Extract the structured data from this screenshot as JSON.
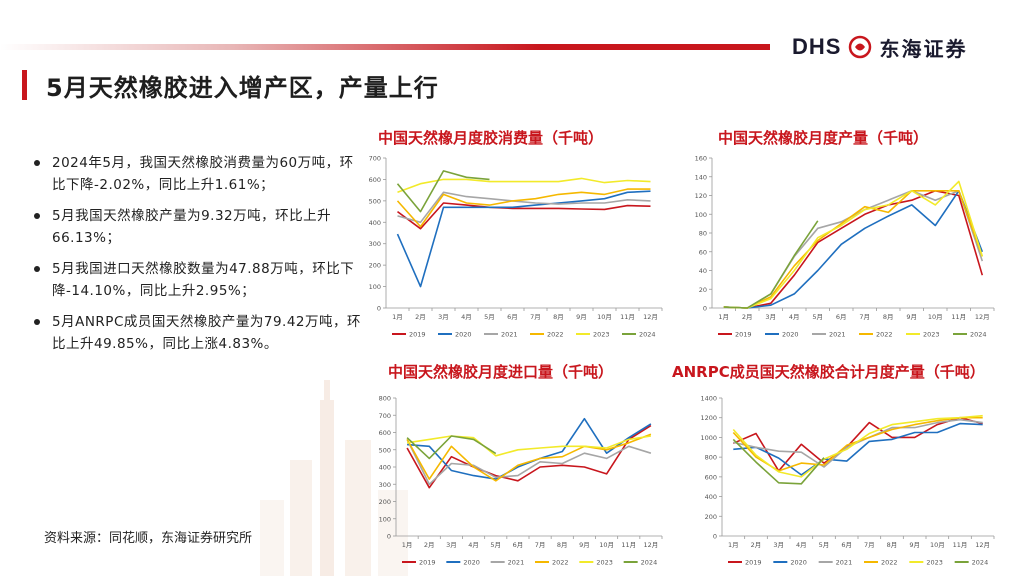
{
  "header": {
    "logo_text": "DHS",
    "logo_cn": "东海证券",
    "page_title": "5月天然橡胶进入增产区，产量上行"
  },
  "bullets": [
    "2024年5月，我国天然橡胶消费量为60万吨，环比下降-2.02%，同比上升1.61%；",
    "5月我国天然橡胶产量为9.32万吨，环比上升66.13%；",
    "5月我国进口天然橡胶数量为47.88万吨，环比下降-14.10%，同比上升2.95%；",
    "5月ANRPC成员国天然橡胶产量为79.42万吨，环比上升49.85%，同比上涨4.83%。"
  ],
  "source": "资料来源：同花顺，东海证券研究所",
  "colors": {
    "2019": "#c8161d",
    "2020": "#1f6fbf",
    "2021": "#a6a6a6",
    "2022": "#f5b800",
    "2023": "#f2ea2a",
    "2024": "#7aa33a"
  },
  "chart_data": [
    {
      "id": "consumption",
      "type": "line",
      "title": "中国天然橡月度胶消费量（千吨）",
      "categories": [
        "1月",
        "2月",
        "3月",
        "4月",
        "5月",
        "6月",
        "7月",
        "8月",
        "9月",
        "10月",
        "11月",
        "12月"
      ],
      "ylim": [
        0,
        700
      ],
      "yticks": [
        0,
        100,
        200,
        300,
        400,
        500,
        600,
        700
      ],
      "series": [
        {
          "name": "2019",
          "values": [
            450,
            370,
            490,
            480,
            470,
            465,
            465,
            465,
            462,
            460,
            478,
            475
          ]
        },
        {
          "name": "2020",
          "values": [
            345,
            100,
            470,
            470,
            470,
            470,
            480,
            490,
            500,
            510,
            540,
            545
          ]
        },
        {
          "name": "2021",
          "values": [
            430,
            400,
            540,
            520,
            510,
            500,
            490,
            485,
            490,
            490,
            505,
            500
          ]
        },
        {
          "name": "2022",
          "values": [
            500,
            380,
            530,
            490,
            480,
            500,
            510,
            530,
            540,
            530,
            555,
            555
          ]
        },
        {
          "name": "2023",
          "values": [
            540,
            580,
            600,
            600,
            590,
            590,
            590,
            590,
            605,
            585,
            595,
            590
          ]
        },
        {
          "name": "2024",
          "values": [
            580,
            450,
            640,
            610,
            600,
            null,
            null,
            null,
            null,
            null,
            null,
            null
          ]
        }
      ]
    },
    {
      "id": "production",
      "type": "line",
      "title": "中国天然橡胶月度产量（千吨）",
      "categories": [
        "1月",
        "2月",
        "3月",
        "4月",
        "5月",
        "6月",
        "7月",
        "8月",
        "9月",
        "10月",
        "11月",
        "12月"
      ],
      "ylim": [
        0,
        160
      ],
      "yticks": [
        0,
        20,
        40,
        60,
        80,
        100,
        120,
        140,
        160
      ],
      "series": [
        {
          "name": "2019",
          "values": [
            1,
            0,
            5,
            35,
            70,
            85,
            100,
            110,
            115,
            125,
            120,
            35
          ]
        },
        {
          "name": "2020",
          "values": [
            1,
            0,
            3,
            15,
            40,
            68,
            85,
            98,
            110,
            88,
            125,
            60
          ]
        },
        {
          "name": "2021",
          "values": [
            1,
            0,
            15,
            55,
            85,
            92,
            105,
            115,
            125,
            115,
            125,
            50
          ]
        },
        {
          "name": "2022",
          "values": [
            1,
            0,
            12,
            45,
            72,
            90,
            108,
            102,
            125,
            125,
            125,
            55
          ]
        },
        {
          "name": "2023",
          "values": [
            1,
            0,
            10,
            40,
            75,
            88,
            105,
            110,
            125,
            110,
            135,
            55
          ]
        },
        {
          "name": "2024",
          "values": [
            1,
            0,
            15,
            56,
            93,
            null,
            null,
            null,
            null,
            null,
            null,
            null
          ]
        }
      ]
    },
    {
      "id": "imports",
      "type": "line",
      "title": "中国天然橡胶月度进口量（千吨）",
      "categories": [
        "1月",
        "2月",
        "3月",
        "4月",
        "5月",
        "6月",
        "7月",
        "8月",
        "9月",
        "10月",
        "11月",
        "12月"
      ],
      "ylim": [
        0,
        800
      ],
      "yticks": [
        0,
        100,
        200,
        300,
        400,
        500,
        600,
        700,
        800
      ],
      "series": [
        {
          "name": "2019",
          "values": [
            510,
            280,
            460,
            400,
            350,
            320,
            400,
            410,
            400,
            360,
            560,
            640
          ]
        },
        {
          "name": "2020",
          "values": [
            530,
            520,
            380,
            350,
            330,
            400,
            450,
            490,
            680,
            480,
            570,
            650
          ]
        },
        {
          "name": "2021",
          "values": [
            560,
            300,
            420,
            410,
            340,
            350,
            430,
            420,
            480,
            450,
            520,
            480
          ]
        },
        {
          "name": "2022",
          "values": [
            560,
            330,
            520,
            400,
            320,
            410,
            450,
            460,
            520,
            500,
            540,
            590
          ]
        },
        {
          "name": "2023",
          "values": [
            540,
            560,
            580,
            570,
            465,
            500,
            510,
            520,
            520,
            510,
            560,
            580
          ]
        },
        {
          "name": "2024",
          "values": [
            570,
            450,
            580,
            560,
            478,
            null,
            null,
            null,
            null,
            null,
            null,
            null
          ]
        }
      ]
    },
    {
      "id": "anrpc",
      "type": "line",
      "title": "ANRPC成员国天然橡胶合计月度产量（千吨）",
      "categories": [
        "1月",
        "2月",
        "3月",
        "4月",
        "5月",
        "6月",
        "7月",
        "8月",
        "9月",
        "10月",
        "11月",
        "12月"
      ],
      "ylim": [
        0,
        1400
      ],
      "yticks": [
        0,
        200,
        400,
        600,
        800,
        1000,
        1200,
        1400
      ],
      "series": [
        {
          "name": "2019",
          "values": [
            940,
            1040,
            660,
            930,
            740,
            900,
            1150,
            1000,
            1000,
            1130,
            1200,
            1140
          ]
        },
        {
          "name": "2020",
          "values": [
            880,
            900,
            790,
            620,
            780,
            760,
            960,
            980,
            1050,
            1050,
            1140,
            1130
          ]
        },
        {
          "name": "2021",
          "values": [
            950,
            900,
            860,
            850,
            700,
            900,
            1000,
            1100,
            1100,
            1150,
            1180,
            1150
          ]
        },
        {
          "name": "2022",
          "values": [
            1050,
            800,
            660,
            740,
            720,
            920,
            1000,
            1080,
            1130,
            1170,
            1200,
            1200
          ]
        },
        {
          "name": "2023",
          "values": [
            1080,
            820,
            650,
            600,
            780,
            880,
            1040,
            1130,
            1160,
            1190,
            1200,
            1220
          ]
        },
        {
          "name": "2024",
          "values": [
            980,
            750,
            540,
            530,
            794,
            null,
            null,
            null,
            null,
            null,
            null,
            null
          ]
        }
      ]
    }
  ]
}
